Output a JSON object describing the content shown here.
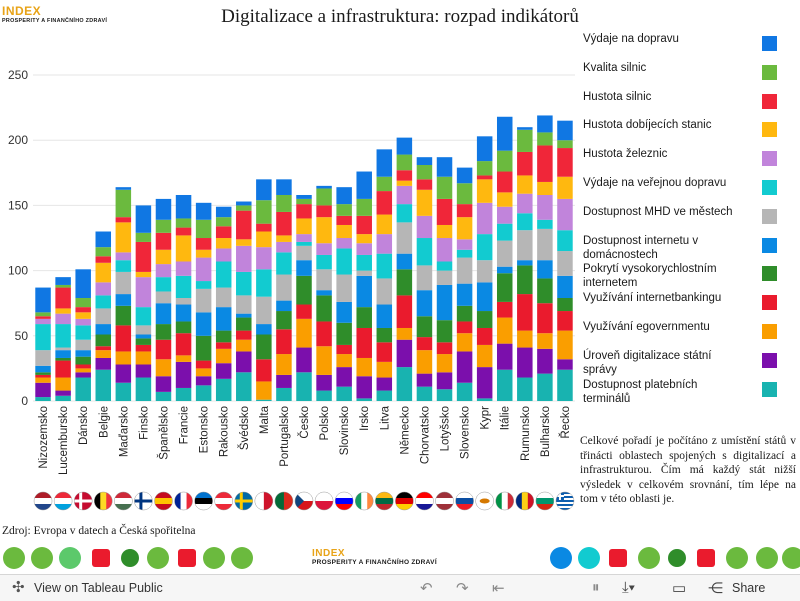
{
  "brand": {
    "name": "INDEX",
    "sub": "PROSPERITY A FINANČNÍHO ZDRAVÍ"
  },
  "chart_data": {
    "type": "bar",
    "stacked": true,
    "title": "Digitalizace a infrastruktura: rozpad indikátorů",
    "ylim": [
      0,
      260
    ],
    "yticks": [
      0,
      50,
      100,
      150,
      200,
      250
    ],
    "categories": [
      "Nizozemsko",
      "Lucembursko",
      "Dánsko",
      "Belgie",
      "Maďarsko",
      "Finsko",
      "Španělsko",
      "Francie",
      "Estonsko",
      "Rakousko",
      "Švédsko",
      "Malta",
      "Portugalsko",
      "Česko",
      "Polsko",
      "Slovinsko",
      "Irsko",
      "Litva",
      "Německo",
      "Chorvatsko",
      "Lotyšsko",
      "Slovensko",
      "Kypr",
      "Itálie",
      "Rumunsko",
      "Bulharsko",
      "Řecko"
    ],
    "series": [
      {
        "name": "Dostupnost platebních terminálů",
        "color": "#18b3b0",
        "values": [
          3,
          4,
          18,
          24,
          14,
          18,
          7,
          10,
          12,
          17,
          22,
          1,
          10,
          22,
          8,
          11,
          2,
          8,
          26,
          11,
          9,
          14,
          2,
          24,
          18,
          21,
          24
        ]
      },
      {
        "name": "Úroveň digitalizace státní správy",
        "color": "#7b0fac",
        "values": [
          11,
          4,
          4,
          9,
          14,
          10,
          12,
          20,
          7,
          12,
          16,
          0,
          10,
          19,
          12,
          15,
          17,
          10,
          21,
          10,
          13,
          24,
          24,
          20,
          23,
          19,
          8
        ]
      },
      {
        "name": "Využívání egovernmentu",
        "color": "#fa9e00",
        "values": [
          4,
          10,
          3,
          6,
          10,
          10,
          13,
          5,
          6,
          11,
          9,
          14,
          16,
          22,
          22,
          10,
          14,
          12,
          9,
          18,
          14,
          14,
          17,
          20,
          13,
          12,
          22
        ]
      },
      {
        "name": "Využívání internetbankingu",
        "color": "#ea1b2d",
        "values": [
          2,
          13,
          3,
          3,
          20,
          5,
          15,
          17,
          6,
          5,
          7,
          17,
          19,
          11,
          19,
          7,
          23,
          15,
          25,
          10,
          9,
          9,
          13,
          12,
          28,
          23,
          15
        ]
      },
      {
        "name": "Pokrytí vysokorychlostním internetem",
        "color": "#2f8d2a",
        "values": [
          2,
          2,
          6,
          9,
          15,
          5,
          12,
          9,
          19,
          9,
          10,
          19,
          14,
          22,
          20,
          17,
          16,
          11,
          20,
          16,
          17,
          12,
          13,
          22,
          22,
          19,
          10
        ]
      },
      {
        "name": "Dostupnost internetu v domácnostech",
        "color": "#0a89e3",
        "values": [
          5,
          6,
          5,
          8,
          9,
          3,
          16,
          13,
          18,
          18,
          3,
          8,
          8,
          12,
          4,
          16,
          24,
          18,
          12,
          20,
          27,
          17,
          22,
          5,
          4,
          14,
          17
        ]
      },
      {
        "name": "Dostupnost MHD ve městech",
        "color": "#b6b6b6",
        "values": [
          12,
          2,
          8,
          12,
          17,
          7,
          9,
          5,
          18,
          15,
          14,
          21,
          20,
          11,
          16,
          21,
          4,
          20,
          24,
          19,
          11,
          20,
          17,
          20,
          23,
          24,
          19
        ]
      },
      {
        "name": "Výdaje na veřejnou dopravu",
        "color": "#12cbd0",
        "values": [
          20,
          18,
          11,
          10,
          9,
          14,
          11,
          17,
          6,
          20,
          18,
          21,
          17,
          3,
          11,
          20,
          12,
          19,
          14,
          21,
          7,
          6,
          20,
          13,
          13,
          7,
          16
        ]
      },
      {
        "name": "Hustota železnic",
        "color": "#c184db",
        "values": [
          4,
          8,
          5,
          10,
          6,
          23,
          10,
          11,
          18,
          10,
          20,
          17,
          8,
          6,
          9,
          8,
          9,
          15,
          14,
          17,
          18,
          8,
          24,
          13,
          15,
          19,
          24
        ]
      },
      {
        "name": "Hustota dobíjecích stanic",
        "color": "#ffb80f",
        "values": [
          0,
          4,
          5,
          15,
          23,
          4,
          11,
          20,
          6,
          8,
          5,
          12,
          5,
          12,
          20,
          10,
          7,
          15,
          4,
          20,
          10,
          17,
          18,
          11,
          14,
          10,
          17
        ]
      },
      {
        "name": "Hustota silnic",
        "color": "#f02639",
        "values": [
          2,
          16,
          4,
          5,
          4,
          23,
          13,
          6,
          9,
          9,
          22,
          6,
          18,
          11,
          9,
          7,
          14,
          18,
          8,
          8,
          20,
          10,
          3,
          16,
          18,
          28,
          22
        ]
      },
      {
        "name": "Kvalita silnic",
        "color": "#6bba3e",
        "values": [
          3,
          2,
          7,
          7,
          21,
          7,
          10,
          7,
          14,
          7,
          4,
          18,
          13,
          4,
          13,
          9,
          13,
          11,
          12,
          11,
          17,
          16,
          11,
          16,
          17,
          10,
          6
        ]
      },
      {
        "name": "Výdaje na dopravu",
        "color": "#1077e3",
        "values": [
          19,
          6,
          22,
          12,
          2,
          21,
          16,
          18,
          13,
          8,
          3,
          16,
          12,
          3,
          2,
          13,
          21,
          21,
          13,
          6,
          15,
          12,
          19,
          26,
          2,
          13,
          15
        ]
      }
    ]
  },
  "legend": [
    "Výdaje na dopravu",
    "Kvalita silnic",
    "Hustota silnic",
    "Hustota dobíjecích stanic",
    "Hustota železnic",
    "Výdaje na veřejnou dopravu",
    "Dostupnost MHD ve městech",
    "Dostupnost internetu v domácnostech",
    "Pokrytí vysokorychlostním internetem",
    "Využívání internetbankingu",
    "Využívání egovernmentu",
    "Úroveň digitalizace státní správy",
    "Dostupnost platebních terminálů"
  ],
  "flags": [
    {
      "country": "Nizozemsko",
      "colors": [
        "#ae1c28",
        "#ffffff",
        "#21468b"
      ],
      "dir": "h"
    },
    {
      "country": "Lucembursko",
      "colors": [
        "#ed2939",
        "#ffffff",
        "#00a1de"
      ],
      "dir": "h"
    },
    {
      "country": "Dánsko",
      "colors": [
        "#c60c30",
        "#ffffff"
      ],
      "dir": "nordic"
    },
    {
      "country": "Belgie",
      "colors": [
        "#000000",
        "#fdda24",
        "#ef3340"
      ],
      "dir": "v"
    },
    {
      "country": "Maďarsko",
      "colors": [
        "#ce2939",
        "#ffffff",
        "#477050"
      ],
      "dir": "h"
    },
    {
      "country": "Finsko",
      "colors": [
        "#ffffff",
        "#003580"
      ],
      "dir": "nordic"
    },
    {
      "country": "Španělsko",
      "colors": [
        "#c60b1e",
        "#ffc400",
        "#c60b1e"
      ],
      "dir": "h"
    },
    {
      "country": "Francie",
      "colors": [
        "#002395",
        "#ffffff",
        "#ed2939"
      ],
      "dir": "v"
    },
    {
      "country": "Estonsko",
      "colors": [
        "#0072ce",
        "#000000",
        "#ffffff"
      ],
      "dir": "h"
    },
    {
      "country": "Rakousko",
      "colors": [
        "#ed2939",
        "#ffffff",
        "#ed2939"
      ],
      "dir": "h"
    },
    {
      "country": "Švédsko",
      "colors": [
        "#006aa7",
        "#fecc00"
      ],
      "dir": "nordic"
    },
    {
      "country": "Malta",
      "colors": [
        "#ffffff",
        "#cf142b"
      ],
      "dir": "v"
    },
    {
      "country": "Portugalsko",
      "colors": [
        "#046a38",
        "#da291c"
      ],
      "dir": "v"
    },
    {
      "country": "Česko",
      "colors": [
        "#ffffff",
        "#d7141a",
        "#11457e"
      ],
      "dir": "cz"
    },
    {
      "country": "Polsko",
      "colors": [
        "#ffffff",
        "#dc143c"
      ],
      "dir": "h"
    },
    {
      "country": "Slovinsko",
      "colors": [
        "#ffffff",
        "#0000ff",
        "#ff0000"
      ],
      "dir": "h"
    },
    {
      "country": "Irsko",
      "colors": [
        "#169b62",
        "#ffffff",
        "#ff883e"
      ],
      "dir": "v"
    },
    {
      "country": "Litva",
      "colors": [
        "#fdb913",
        "#006a44",
        "#c1272d"
      ],
      "dir": "h"
    },
    {
      "country": "Německo",
      "colors": [
        "#000000",
        "#dd0000",
        "#ffce00"
      ],
      "dir": "h"
    },
    {
      "country": "Chorvatsko",
      "colors": [
        "#ff0000",
        "#ffffff",
        "#171796"
      ],
      "dir": "h"
    },
    {
      "country": "Lotyšsko",
      "colors": [
        "#9e3039",
        "#ffffff",
        "#9e3039"
      ],
      "dir": "h"
    },
    {
      "country": "Slovensko",
      "colors": [
        "#ffffff",
        "#0b4ea2",
        "#ee1c25"
      ],
      "dir": "h"
    },
    {
      "country": "Kypr",
      "colors": [
        "#ffffff",
        "#d57800"
      ],
      "dir": "cy"
    },
    {
      "country": "Itálie",
      "colors": [
        "#009246",
        "#ffffff",
        "#ce2b37"
      ],
      "dir": "v"
    },
    {
      "country": "Rumunsko",
      "colors": [
        "#002b7f",
        "#fcd116",
        "#ce1126"
      ],
      "dir": "v"
    },
    {
      "country": "Bulharsko",
      "colors": [
        "#ffffff",
        "#00966e",
        "#d62612"
      ],
      "dir": "h"
    },
    {
      "country": "Řecko",
      "colors": [
        "#0d5eaf",
        "#ffffff"
      ],
      "dir": "gr"
    }
  ],
  "note": "Celkové pořadí je počítáno z umístění států v třinácti oblastech spojených s digitalizací a infrastrukturou. Čím má každý stát nižší výsledek v celkovém srovnání, tím lépe na tom v této oblasti je.",
  "source": "Zdroj: Evropa v datech a Česká spořitelna",
  "toolbar": {
    "view_label": "View on Tableau Public",
    "share_label": "Share"
  }
}
